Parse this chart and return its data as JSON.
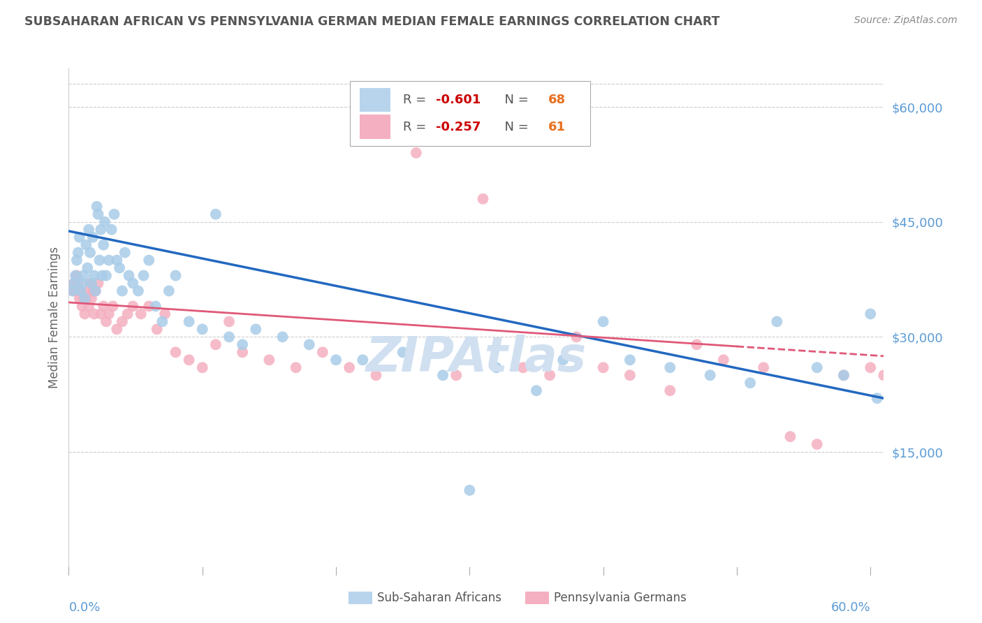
{
  "title": "SUBSAHARAN AFRICAN VS PENNSYLVANIA GERMAN MEDIAN FEMALE EARNINGS CORRELATION CHART",
  "source": "Source: ZipAtlas.com",
  "ylabel": "Median Female Earnings",
  "yticks": [
    0,
    15000,
    30000,
    45000,
    60000
  ],
  "ytick_labels": [
    "",
    "$15,000",
    "$30,000",
    "$45,000",
    "$60,000"
  ],
  "ymax": 65000,
  "ymin": 0,
  "xmin": 0.0,
  "xmax": 0.61,
  "series1_label": "Sub-Saharan Africans",
  "series1_R": -0.601,
  "series1_N": 68,
  "series2_label": "Pennsylvania Germans",
  "series2_R": -0.257,
  "series2_N": 61,
  "series1_color": "#a8cce8",
  "series2_color": "#f4b0c0",
  "series1_line_color": "#2268c0",
  "series2_line_color": "#e05878",
  "background_color": "#ffffff",
  "grid_color": "#cccccc",
  "title_color": "#555555",
  "axis_label_color": "#666666",
  "ytick_color": "#5b9bd5",
  "xtick_color": "#5b9bd5",
  "watermark_color": "#d0e0f0",
  "legend_box_color1": "#b8d4ed",
  "legend_box_color2": "#f4b0c0",
  "series1_x": [
    0.003,
    0.004,
    0.005,
    0.006,
    0.007,
    0.008,
    0.009,
    0.01,
    0.011,
    0.012,
    0.013,
    0.014,
    0.015,
    0.016,
    0.017,
    0.018,
    0.019,
    0.02,
    0.021,
    0.022,
    0.023,
    0.024,
    0.025,
    0.026,
    0.027,
    0.028,
    0.03,
    0.032,
    0.034,
    0.036,
    0.038,
    0.04,
    0.042,
    0.045,
    0.048,
    0.052,
    0.056,
    0.06,
    0.065,
    0.07,
    0.075,
    0.08,
    0.09,
    0.1,
    0.11,
    0.12,
    0.13,
    0.14,
    0.16,
    0.18,
    0.2,
    0.22,
    0.25,
    0.28,
    0.3,
    0.32,
    0.35,
    0.37,
    0.4,
    0.42,
    0.45,
    0.48,
    0.51,
    0.53,
    0.56,
    0.58,
    0.6,
    0.605
  ],
  "series1_y": [
    36000,
    37000,
    38000,
    40000,
    41000,
    43000,
    36000,
    37000,
    38000,
    35000,
    42000,
    39000,
    44000,
    41000,
    37000,
    43000,
    38000,
    36000,
    47000,
    46000,
    40000,
    44000,
    38000,
    42000,
    45000,
    38000,
    40000,
    44000,
    46000,
    40000,
    39000,
    36000,
    41000,
    38000,
    37000,
    36000,
    38000,
    40000,
    34000,
    32000,
    36000,
    38000,
    32000,
    31000,
    46000,
    30000,
    29000,
    31000,
    30000,
    29000,
    27000,
    27000,
    28000,
    25000,
    10000,
    26000,
    23000,
    27000,
    32000,
    27000,
    26000,
    25000,
    24000,
    32000,
    26000,
    25000,
    33000,
    22000
  ],
  "series2_x": [
    0.003,
    0.004,
    0.005,
    0.006,
    0.007,
    0.008,
    0.009,
    0.01,
    0.011,
    0.012,
    0.013,
    0.014,
    0.015,
    0.016,
    0.017,
    0.018,
    0.019,
    0.02,
    0.022,
    0.024,
    0.026,
    0.028,
    0.03,
    0.033,
    0.036,
    0.04,
    0.044,
    0.048,
    0.054,
    0.06,
    0.066,
    0.072,
    0.08,
    0.09,
    0.1,
    0.11,
    0.12,
    0.13,
    0.15,
    0.17,
    0.19,
    0.21,
    0.23,
    0.26,
    0.29,
    0.31,
    0.34,
    0.36,
    0.38,
    0.4,
    0.42,
    0.45,
    0.47,
    0.49,
    0.52,
    0.54,
    0.56,
    0.58,
    0.6,
    0.61,
    0.615
  ],
  "series2_y": [
    36000,
    37000,
    36000,
    38000,
    37000,
    35000,
    36000,
    34000,
    35000,
    33000,
    35000,
    36000,
    34000,
    37000,
    35000,
    36000,
    33000,
    36000,
    37000,
    33000,
    34000,
    32000,
    33000,
    34000,
    31000,
    32000,
    33000,
    34000,
    33000,
    34000,
    31000,
    33000,
    28000,
    27000,
    26000,
    29000,
    32000,
    28000,
    27000,
    26000,
    28000,
    26000,
    25000,
    54000,
    25000,
    48000,
    26000,
    25000,
    30000,
    26000,
    25000,
    23000,
    29000,
    27000,
    26000,
    17000,
    16000,
    25000,
    26000,
    25000,
    24000
  ],
  "line1_x0": 0.0,
  "line1_y0": 43800,
  "line1_x1": 0.61,
  "line1_y1": 22000,
  "line2_x0": 0.0,
  "line2_y0": 34500,
  "line2_x1": 0.61,
  "line2_y1": 27500,
  "line2_solid_end": 0.5
}
